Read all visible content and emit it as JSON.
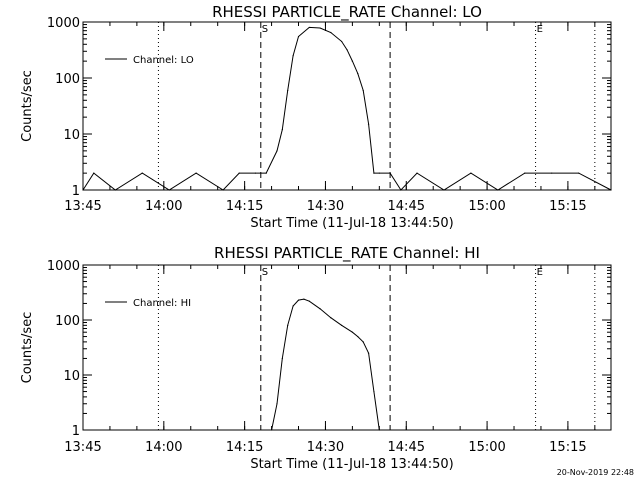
{
  "chart_data": [
    {
      "type": "line",
      "title": "RHESSI PARTICLE_RATE Channel: LO",
      "xlabel": "Start Time (11-Jul-18 13:44:50)",
      "ylabel": "Counts/sec",
      "yscale": "log",
      "ylim": [
        1,
        1000
      ],
      "yticks": [
        "1",
        "10",
        "100",
        "1000"
      ],
      "xticks": [
        "13:45",
        "14:00",
        "14:15",
        "14:30",
        "14:45",
        "15:00",
        "15:15"
      ],
      "x_start": "13:45",
      "x_end": "15:23",
      "legend": "top-left",
      "series": [
        {
          "name": "Channel: LO",
          "x": [
            "13:45",
            "13:47",
            "13:51",
            "13:56",
            "14:01",
            "14:06",
            "14:11",
            "14:14",
            "14:17",
            "14:19",
            "14:21",
            "14:22",
            "14:23",
            "14:24",
            "14:25",
            "14:27",
            "14:29",
            "14:31",
            "14:33",
            "14:34",
            "14:35",
            "14:36",
            "14:37",
            "14:38",
            "14:39",
            "14:40",
            "14:42",
            "14:44",
            "14:47",
            "14:52",
            "14:57",
            "15:02",
            "15:07",
            "15:12",
            "15:17",
            "15:23"
          ],
          "y": [
            1,
            2,
            1,
            2,
            1,
            2,
            1,
            2,
            2,
            2,
            5,
            12,
            60,
            250,
            550,
            800,
            780,
            650,
            450,
            320,
            200,
            120,
            60,
            15,
            2,
            2,
            2,
            1,
            2,
            1,
            2,
            1,
            2,
            2,
            2,
            1
          ]
        }
      ],
      "markers": [
        {
          "x": "13:59",
          "style": "dotted",
          "label": ""
        },
        {
          "x": "14:18",
          "style": "dashed",
          "label": "S"
        },
        {
          "x": "14:42",
          "style": "dashed",
          "label": ""
        },
        {
          "x": "15:09",
          "style": "dotted",
          "label": "E"
        },
        {
          "x": "15:20",
          "style": "dotted",
          "label": ""
        }
      ]
    },
    {
      "type": "line",
      "title": "RHESSI PARTICLE_RATE Channel: HI",
      "xlabel": "Start Time (11-Jul-18 13:44:50)",
      "ylabel": "Counts/sec",
      "yscale": "log",
      "ylim": [
        1,
        1000
      ],
      "yticks": [
        "1",
        "10",
        "100",
        "1000"
      ],
      "xticks": [
        "13:45",
        "14:00",
        "14:15",
        "14:30",
        "14:45",
        "15:00",
        "15:15"
      ],
      "x_start": "13:45",
      "x_end": "15:23",
      "legend": "top-left",
      "series": [
        {
          "name": "Channel: HI",
          "x": [
            "14:20",
            "14:21",
            "14:22",
            "14:23",
            "14:24",
            "14:25",
            "14:26",
            "14:27",
            "14:29",
            "14:31",
            "14:33",
            "14:35",
            "14:36",
            "14:37",
            "14:38",
            "14:39",
            "14:40"
          ],
          "y": [
            0.9,
            3,
            20,
            80,
            180,
            230,
            240,
            220,
            160,
            110,
            80,
            60,
            50,
            40,
            25,
            5,
            0.9
          ]
        }
      ],
      "markers": [
        {
          "x": "13:59",
          "style": "dotted",
          "label": ""
        },
        {
          "x": "14:18",
          "style": "dashed",
          "label": "S"
        },
        {
          "x": "14:42",
          "style": "dashed",
          "label": ""
        },
        {
          "x": "15:09",
          "style": "dotted",
          "label": "E"
        },
        {
          "x": "15:20",
          "style": "dotted",
          "label": ""
        }
      ]
    }
  ],
  "footer": {
    "timestamp": "20-Nov-2019 22:48"
  }
}
